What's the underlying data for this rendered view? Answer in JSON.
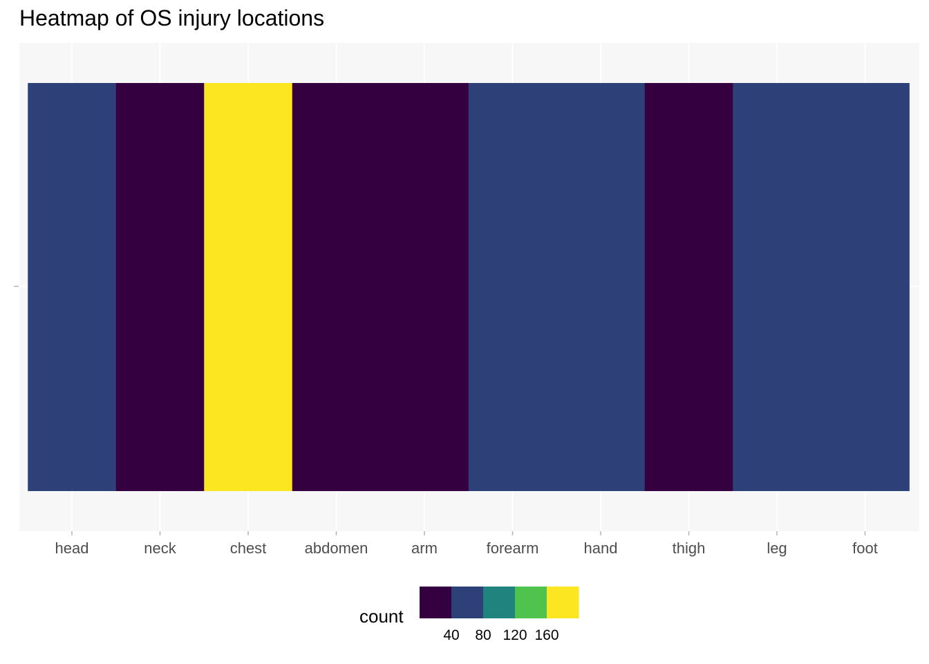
{
  "chart_data": {
    "type": "heatmap",
    "title": "Heatmap of OS injury locations",
    "xlabel": "",
    "ylabel": "",
    "categories": [
      "head",
      "neck",
      "chest",
      "abdomen",
      "arm",
      "forearm",
      "hand",
      "thigh",
      "leg",
      "foot"
    ],
    "values": [
      60,
      20,
      180,
      20,
      20,
      60,
      60,
      20,
      60,
      60
    ],
    "grid": true,
    "legend": {
      "title": "count",
      "position": "bottom",
      "breaks": [
        40,
        80,
        120,
        160
      ],
      "colors": [
        "#35003F",
        "#2E4078",
        "#21837E",
        "#50C34F",
        "#FCE622"
      ]
    }
  },
  "colors": {
    "panel_background": "#F7F7F7",
    "grid_line": "#FFFFFF",
    "tick_label": "#4D4D4D",
    "tick_mark": "#B3B3B3"
  }
}
